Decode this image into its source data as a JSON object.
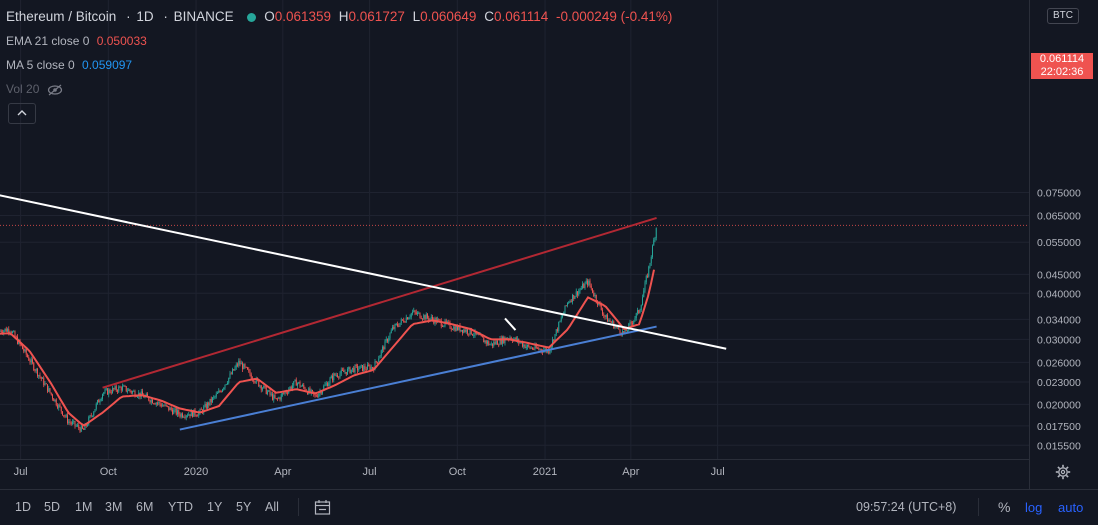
{
  "header": {
    "symbol": "Ethereum / Bitcoin",
    "interval": "1D",
    "exchange": "BINANCE",
    "open_label": "O",
    "open": "0.061359",
    "high_label": "H",
    "high": "0.061727",
    "low_label": "L",
    "low": "0.060649",
    "close_label": "C",
    "close": "0.061114",
    "change": "-0.000249 (-0.41%)"
  },
  "indicators": {
    "ema": {
      "label": "EMA 21 close 0",
      "value": "0.050033",
      "color": "#ef5350"
    },
    "ma": {
      "label": "MA 5 close 0",
      "value": "0.059097",
      "color": "#2962ff"
    },
    "vol": {
      "label": "Vol 20"
    }
  },
  "icons": {
    "eye_off": "eye-off-icon",
    "collapse": "chevron-up-icon",
    "settings": "gear-icon",
    "compare": "calendar-range-icon"
  },
  "price_axis": {
    "currency": "BTC",
    "ticks": [
      "0.075000",
      "0.065000",
      "0.055000",
      "0.045000",
      "0.040000",
      "0.034000",
      "0.030000",
      "0.026000",
      "0.023000",
      "0.020000",
      "0.017500",
      "0.015500"
    ],
    "last_price": "0.061114",
    "countdown": "22:02:36"
  },
  "time_axis": {
    "ticks": [
      "Jul",
      "Oct",
      "2020",
      "Apr",
      "Jul",
      "Oct",
      "2021",
      "Apr",
      "Jul"
    ]
  },
  "bottom_bar": {
    "timeframes": [
      "1D",
      "5D",
      "1M",
      "3M",
      "6M",
      "YTD",
      "1Y",
      "5Y",
      "All"
    ],
    "clock": "09:57:24 (UTC+8)",
    "percent": "%",
    "log": "log",
    "auto": "auto"
  },
  "colors": {
    "background": "#131722",
    "up": "#26a69a",
    "down": "#ef5350",
    "ema": "#ef5350",
    "trend_white": "#ffffff",
    "trend_red": "#b22833",
    "trend_blue": "#4a7fd4"
  },
  "chart_data": {
    "type": "line",
    "title": "Ethereum / Bitcoin · 1D · BINANCE",
    "scale": "log",
    "ylim": [
      0.0145,
      0.077
    ],
    "x": [
      "2019-06-01",
      "2019-06-20",
      "2019-07-10",
      "2019-08-01",
      "2019-08-20",
      "2019-09-05",
      "2019-09-25",
      "2019-10-15",
      "2019-11-05",
      "2019-11-25",
      "2019-12-15",
      "2020-01-05",
      "2020-01-25",
      "2020-02-15",
      "2020-03-05",
      "2020-03-25",
      "2020-04-15",
      "2020-05-05",
      "2020-05-25",
      "2020-06-15",
      "2020-07-05",
      "2020-07-25",
      "2020-08-15",
      "2020-09-05",
      "2020-09-25",
      "2020-10-15",
      "2020-11-05",
      "2020-11-25",
      "2020-12-15",
      "2021-01-05",
      "2021-01-25",
      "2021-02-15",
      "2021-03-05",
      "2021-03-25",
      "2021-04-10",
      "2021-04-20",
      "2021-04-28"
    ],
    "series": [
      {
        "name": "ETH/BTC close",
        "values": [
          0.0315,
          0.032,
          0.0265,
          0.0215,
          0.018,
          0.017,
          0.0215,
          0.0222,
          0.0212,
          0.02,
          0.0188,
          0.019,
          0.0215,
          0.026,
          0.023,
          0.0205,
          0.023,
          0.021,
          0.024,
          0.025,
          0.0252,
          0.032,
          0.0355,
          0.034,
          0.0325,
          0.0315,
          0.029,
          0.0305,
          0.0285,
          0.028,
          0.038,
          0.043,
          0.0345,
          0.031,
          0.036,
          0.047,
          0.0611
        ]
      },
      {
        "name": "EMA 21",
        "values": [
          0.031,
          0.0312,
          0.028,
          0.023,
          0.019,
          0.0175,
          0.019,
          0.021,
          0.0212,
          0.0205,
          0.0195,
          0.019,
          0.0198,
          0.023,
          0.0235,
          0.0215,
          0.022,
          0.0214,
          0.0225,
          0.024,
          0.0248,
          0.0285,
          0.033,
          0.0338,
          0.033,
          0.032,
          0.03,
          0.03,
          0.0293,
          0.0285,
          0.032,
          0.039,
          0.037,
          0.032,
          0.033,
          0.04,
          0.05
        ]
      }
    ]
  }
}
